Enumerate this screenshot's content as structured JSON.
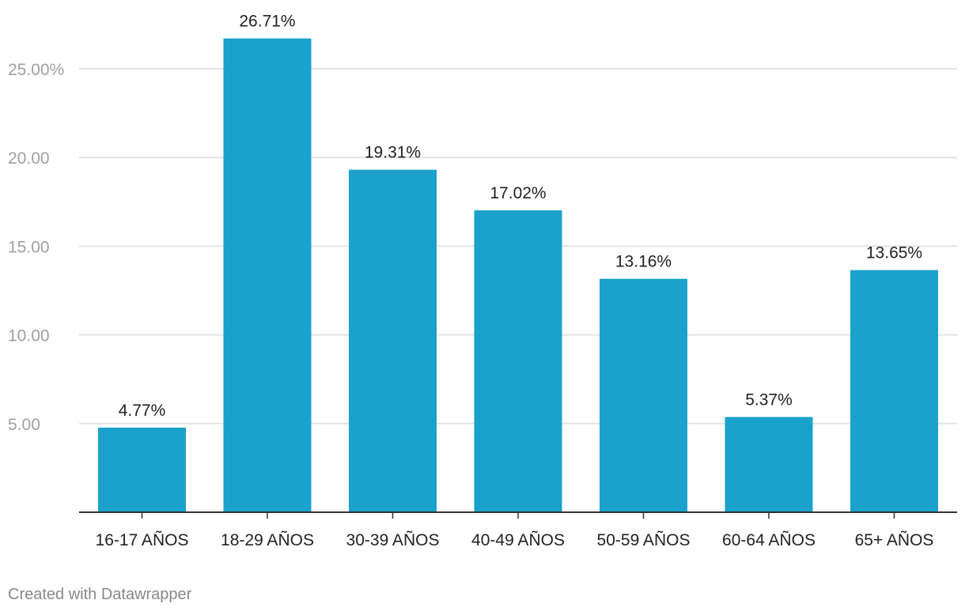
{
  "chart_data": {
    "type": "bar",
    "title": "",
    "xlabel": "",
    "ylabel": "",
    "categories": [
      "16-17 AÑOS",
      "18-29 AÑOS",
      "30-39 AÑOS",
      "40-49 AÑOS",
      "50-59 AÑOS",
      "60-64 AÑOS",
      "65+ AÑOS"
    ],
    "values": [
      4.77,
      26.71,
      19.31,
      17.02,
      13.16,
      5.37,
      13.65
    ],
    "value_labels": [
      "4.77%",
      "26.71%",
      "19.31%",
      "17.02%",
      "13.16%",
      "5.37%",
      "13.65%"
    ],
    "ylim": [
      0,
      28
    ],
    "yticks": [
      5,
      10,
      15,
      20,
      25
    ],
    "ytick_labels": [
      "5.00",
      "10.00",
      "15.00",
      "20.00",
      "25.00%"
    ],
    "grid": true,
    "legend": "none"
  },
  "colors": {
    "bar": "#1aa1cc",
    "grid": "#e3e3e3",
    "axis": "#333333",
    "tick_label": "#a0a0a0",
    "text": "#222222",
    "credit": "#888888"
  },
  "footer": {
    "credit": "Created with Datawrapper"
  }
}
